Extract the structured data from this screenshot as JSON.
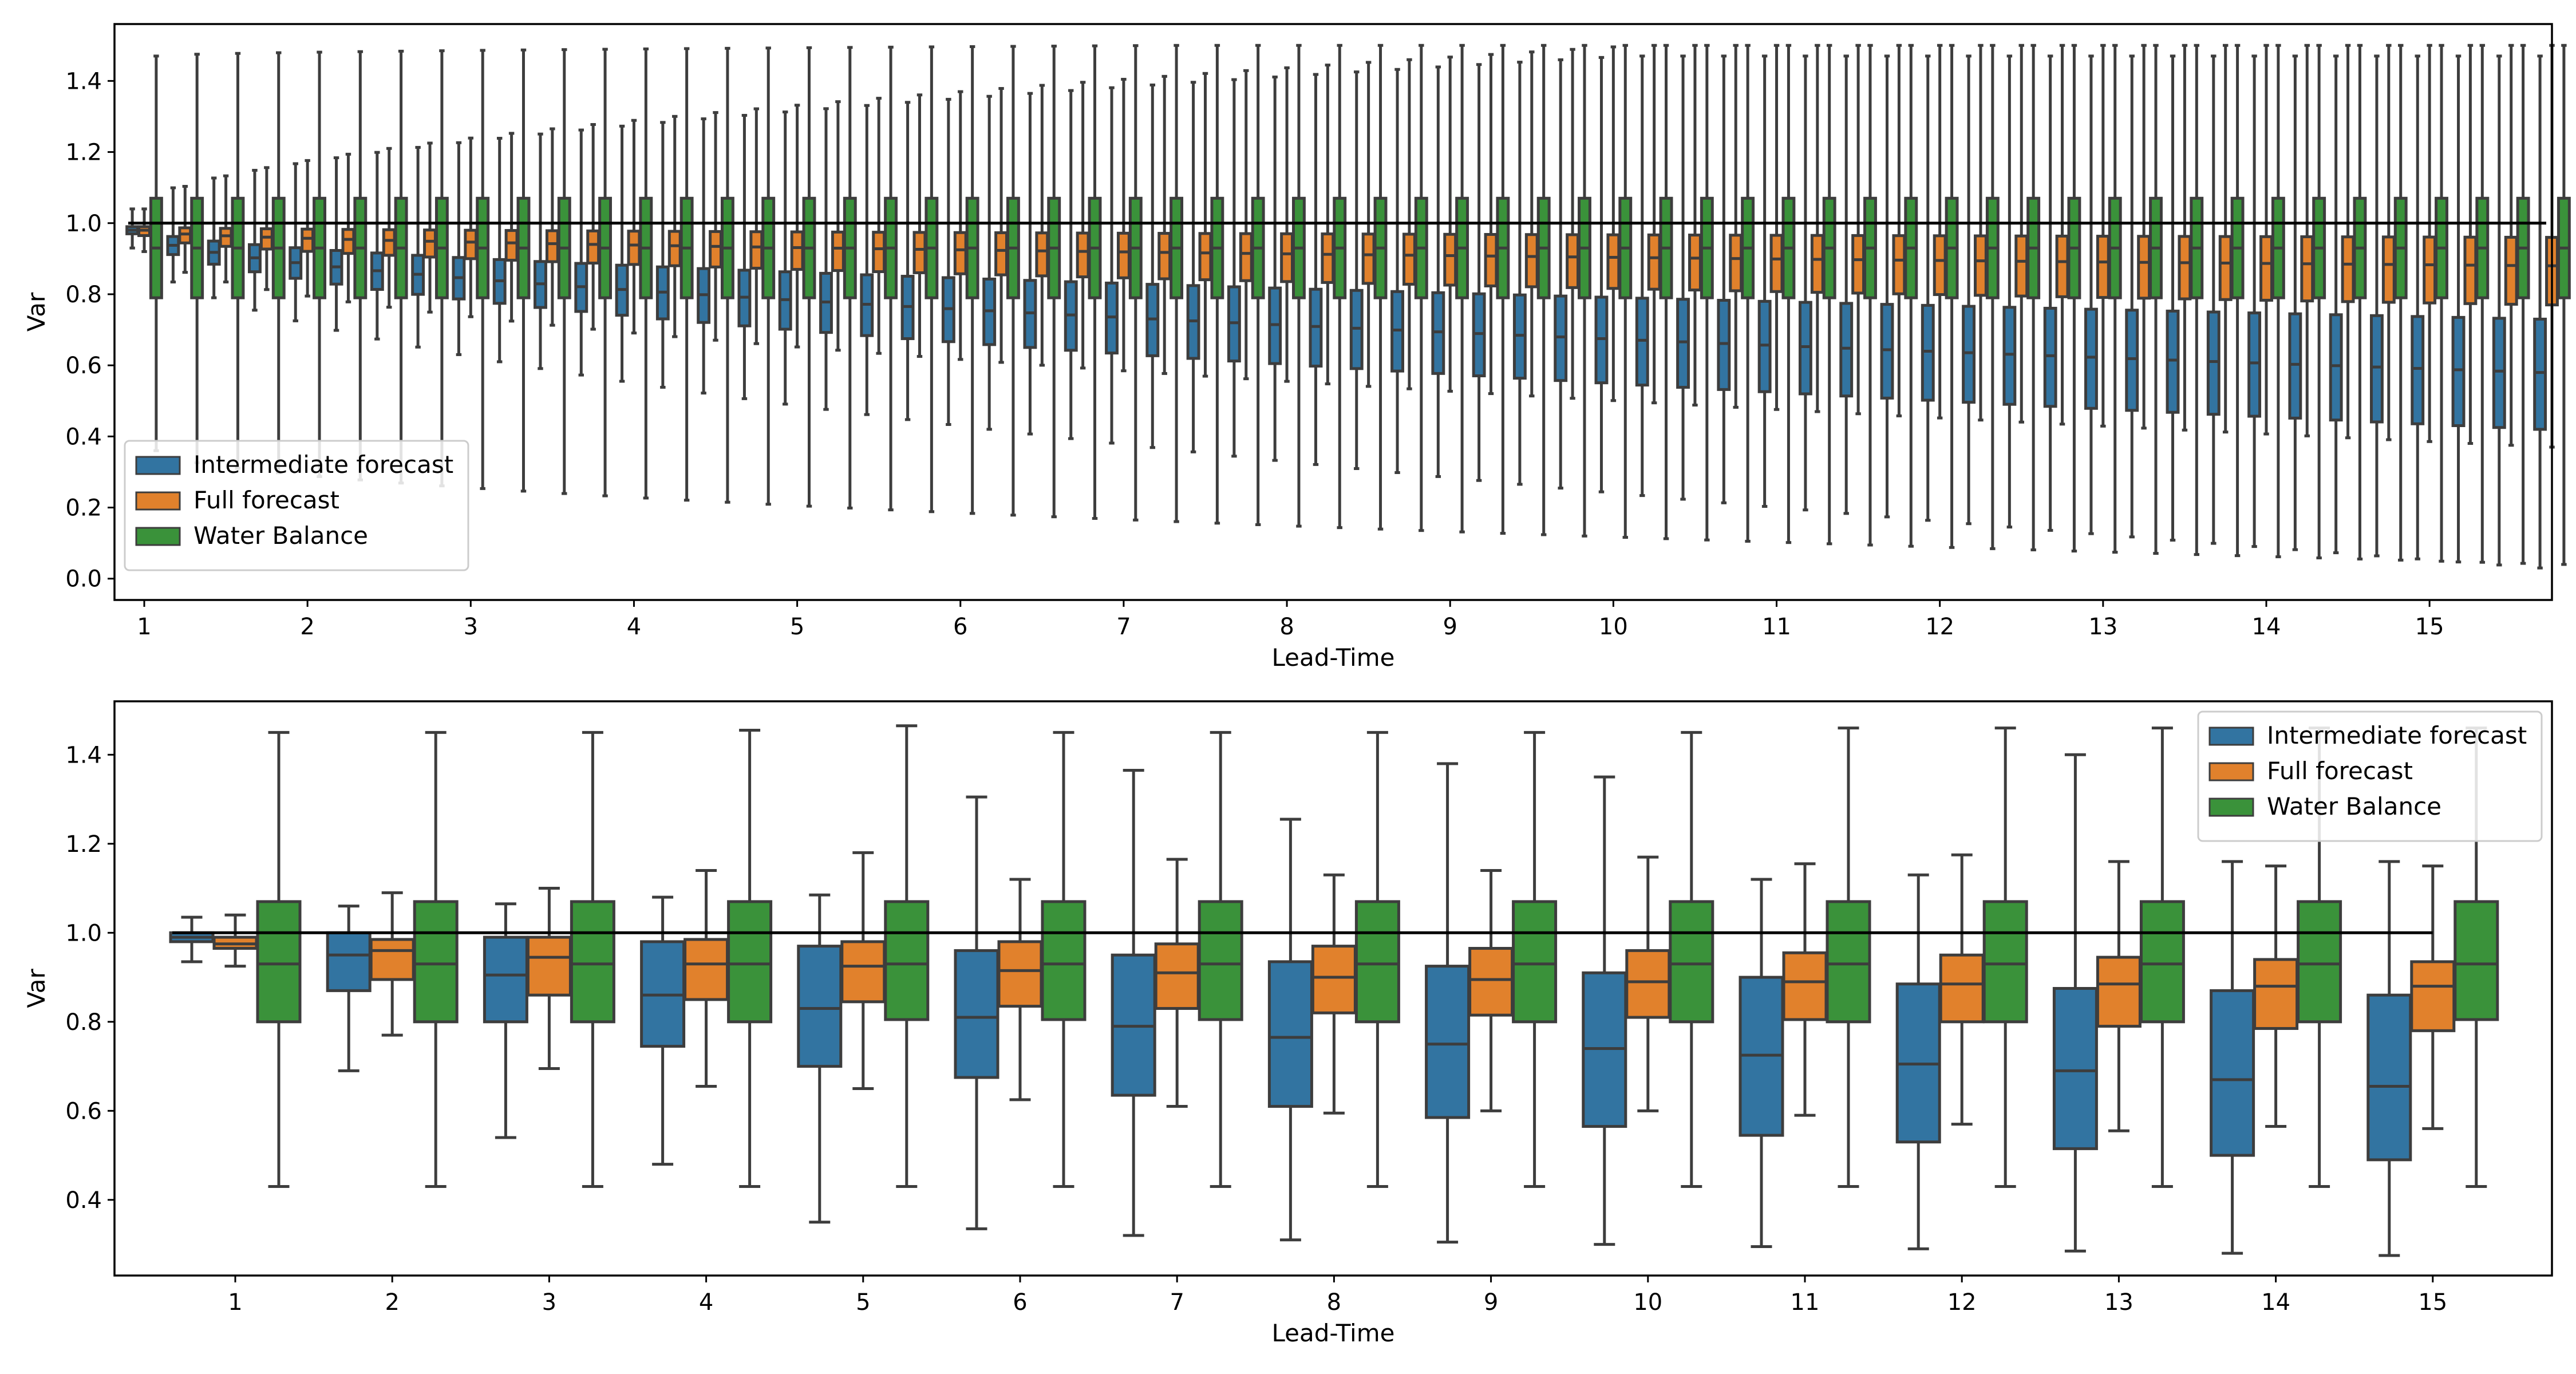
{
  "chart_data": [
    {
      "type": "boxplot",
      "xlabel": "Lead-Time",
      "ylabel": "Var",
      "ylim": [
        -0.06,
        1.56
      ],
      "yticks": [
        0.0,
        0.2,
        0.4,
        0.6,
        0.8,
        1.0,
        1.2,
        1.4
      ],
      "x_tick_labels": [
        "1",
        "2",
        "3",
        "4",
        "5",
        "6",
        "7",
        "8",
        "9",
        "10",
        "11",
        "12",
        "13",
        "14",
        "15"
      ],
      "groups_per_tick": 4,
      "reference_line": 1.0,
      "grid": false,
      "legend": {
        "position": "lower-left",
        "entries": [
          "Intermediate forecast",
          "Full forecast",
          "Water Balance"
        ]
      },
      "series": [
        {
          "name": "Intermediate forecast",
          "color": "#3274a1",
          "start": {
            "q1": 0.97,
            "median": 0.98,
            "q3": 0.99,
            "wl": 0.93,
            "wh": 1.04
          },
          "end": {
            "q1": 0.42,
            "median": 0.58,
            "q3": 0.73,
            "wl": 0.03,
            "wh": 1.47
          }
        },
        {
          "name": "Full forecast",
          "color": "#e1812c",
          "start": {
            "q1": 0.965,
            "median": 0.98,
            "q3": 0.99,
            "wl": 0.92,
            "wh": 1.04
          },
          "end": {
            "q1": 0.77,
            "median": 0.88,
            "q3": 0.96,
            "wl": 0.37,
            "wh": 1.5
          }
        },
        {
          "name": "Water Balance",
          "color": "#3a923a",
          "start": {
            "q1": 0.79,
            "median": 0.93,
            "q3": 1.07,
            "wl": 0.36,
            "wh": 1.47
          },
          "end": {
            "q1": 0.79,
            "median": 0.93,
            "q3": 1.07,
            "wl": 0.04,
            "wh": 1.5
          }
        }
      ]
    },
    {
      "type": "boxplot",
      "xlabel": "Lead-Time",
      "ylabel": "Var",
      "ylim": [
        0.23,
        1.52
      ],
      "yticks": [
        0.4,
        0.6,
        0.8,
        1.0,
        1.2,
        1.4
      ],
      "categories": [
        "1",
        "2",
        "3",
        "4",
        "5",
        "6",
        "7",
        "8",
        "9",
        "10",
        "11",
        "12",
        "13",
        "14",
        "15"
      ],
      "reference_line": 1.0,
      "grid": false,
      "legend": {
        "position": "top-right",
        "entries": [
          "Intermediate forecast",
          "Full forecast",
          "Water Balance"
        ]
      },
      "series": [
        {
          "name": "Intermediate forecast",
          "color": "#3274a1",
          "boxes": [
            {
              "q1": 0.98,
              "median": 0.99,
              "q3": 1.0,
              "wl": 0.935,
              "wh": 1.035
            },
            {
              "q1": 0.87,
              "median": 0.95,
              "q3": 1.0,
              "wl": 0.69,
              "wh": 1.06
            },
            {
              "q1": 0.8,
              "median": 0.905,
              "q3": 0.99,
              "wl": 0.54,
              "wh": 1.065
            },
            {
              "q1": 0.745,
              "median": 0.86,
              "q3": 0.98,
              "wl": 0.48,
              "wh": 1.08
            },
            {
              "q1": 0.7,
              "median": 0.83,
              "q3": 0.97,
              "wl": 0.35,
              "wh": 1.085
            },
            {
              "q1": 0.675,
              "median": 0.81,
              "q3": 0.96,
              "wl": 0.335,
              "wh": 1.305
            },
            {
              "q1": 0.635,
              "median": 0.79,
              "q3": 0.95,
              "wl": 0.32,
              "wh": 1.365
            },
            {
              "q1": 0.61,
              "median": 0.765,
              "q3": 0.935,
              "wl": 0.31,
              "wh": 1.255
            },
            {
              "q1": 0.585,
              "median": 0.75,
              "q3": 0.925,
              "wl": 0.305,
              "wh": 1.38
            },
            {
              "q1": 0.565,
              "median": 0.74,
              "q3": 0.91,
              "wl": 0.3,
              "wh": 1.35
            },
            {
              "q1": 0.545,
              "median": 0.725,
              "q3": 0.9,
              "wl": 0.295,
              "wh": 1.12
            },
            {
              "q1": 0.53,
              "median": 0.705,
              "q3": 0.885,
              "wl": 0.29,
              "wh": 1.13
            },
            {
              "q1": 0.515,
              "median": 0.69,
              "q3": 0.875,
              "wl": 0.285,
              "wh": 1.4
            },
            {
              "q1": 0.5,
              "median": 0.67,
              "q3": 0.87,
              "wl": 0.28,
              "wh": 1.16
            },
            {
              "q1": 0.49,
              "median": 0.655,
              "q3": 0.86,
              "wl": 0.275,
              "wh": 1.16
            }
          ]
        },
        {
          "name": "Full forecast",
          "color": "#e1812c",
          "boxes": [
            {
              "q1": 0.965,
              "median": 0.975,
              "q3": 0.99,
              "wl": 0.925,
              "wh": 1.04
            },
            {
              "q1": 0.895,
              "median": 0.96,
              "q3": 0.985,
              "wl": 0.77,
              "wh": 1.09
            },
            {
              "q1": 0.86,
              "median": 0.945,
              "q3": 0.99,
              "wl": 0.695,
              "wh": 1.1
            },
            {
              "q1": 0.85,
              "median": 0.93,
              "q3": 0.985,
              "wl": 0.655,
              "wh": 1.14
            },
            {
              "q1": 0.845,
              "median": 0.925,
              "q3": 0.98,
              "wl": 0.65,
              "wh": 1.18
            },
            {
              "q1": 0.835,
              "median": 0.915,
              "q3": 0.98,
              "wl": 0.625,
              "wh": 1.12
            },
            {
              "q1": 0.83,
              "median": 0.91,
              "q3": 0.975,
              "wl": 0.61,
              "wh": 1.165
            },
            {
              "q1": 0.82,
              "median": 0.9,
              "q3": 0.97,
              "wl": 0.595,
              "wh": 1.13
            },
            {
              "q1": 0.815,
              "median": 0.895,
              "q3": 0.965,
              "wl": 0.6,
              "wh": 1.14
            },
            {
              "q1": 0.81,
              "median": 0.89,
              "q3": 0.96,
              "wl": 0.6,
              "wh": 1.17
            },
            {
              "q1": 0.805,
              "median": 0.89,
              "q3": 0.955,
              "wl": 0.59,
              "wh": 1.155
            },
            {
              "q1": 0.8,
              "median": 0.885,
              "q3": 0.95,
              "wl": 0.57,
              "wh": 1.175
            },
            {
              "q1": 0.79,
              "median": 0.885,
              "q3": 0.945,
              "wl": 0.555,
              "wh": 1.16
            },
            {
              "q1": 0.785,
              "median": 0.88,
              "q3": 0.94,
              "wl": 0.565,
              "wh": 1.15
            },
            {
              "q1": 0.78,
              "median": 0.88,
              "q3": 0.935,
              "wl": 0.56,
              "wh": 1.15
            }
          ]
        },
        {
          "name": "Water Balance",
          "color": "#3a923a",
          "boxes": [
            {
              "q1": 0.8,
              "median": 0.93,
              "q3": 1.07,
              "wl": 0.43,
              "wh": 1.45
            },
            {
              "q1": 0.8,
              "median": 0.93,
              "q3": 1.07,
              "wl": 0.43,
              "wh": 1.45
            },
            {
              "q1": 0.8,
              "median": 0.93,
              "q3": 1.07,
              "wl": 0.43,
              "wh": 1.45
            },
            {
              "q1": 0.8,
              "median": 0.93,
              "q3": 1.07,
              "wl": 0.43,
              "wh": 1.455
            },
            {
              "q1": 0.805,
              "median": 0.93,
              "q3": 1.07,
              "wl": 0.43,
              "wh": 1.465
            },
            {
              "q1": 0.805,
              "median": 0.93,
              "q3": 1.07,
              "wl": 0.43,
              "wh": 1.45
            },
            {
              "q1": 0.805,
              "median": 0.93,
              "q3": 1.07,
              "wl": 0.43,
              "wh": 1.45
            },
            {
              "q1": 0.8,
              "median": 0.93,
              "q3": 1.07,
              "wl": 0.43,
              "wh": 1.45
            },
            {
              "q1": 0.8,
              "median": 0.93,
              "q3": 1.07,
              "wl": 0.43,
              "wh": 1.45
            },
            {
              "q1": 0.8,
              "median": 0.93,
              "q3": 1.07,
              "wl": 0.43,
              "wh": 1.45
            },
            {
              "q1": 0.8,
              "median": 0.93,
              "q3": 1.07,
              "wl": 0.43,
              "wh": 1.46
            },
            {
              "q1": 0.8,
              "median": 0.93,
              "q3": 1.07,
              "wl": 0.43,
              "wh": 1.46
            },
            {
              "q1": 0.8,
              "median": 0.93,
              "q3": 1.07,
              "wl": 0.43,
              "wh": 1.46
            },
            {
              "q1": 0.8,
              "median": 0.93,
              "q3": 1.07,
              "wl": 0.43,
              "wh": 1.46
            },
            {
              "q1": 0.805,
              "median": 0.93,
              "q3": 1.07,
              "wl": 0.43,
              "wh": 1.46
            }
          ]
        }
      ]
    }
  ]
}
